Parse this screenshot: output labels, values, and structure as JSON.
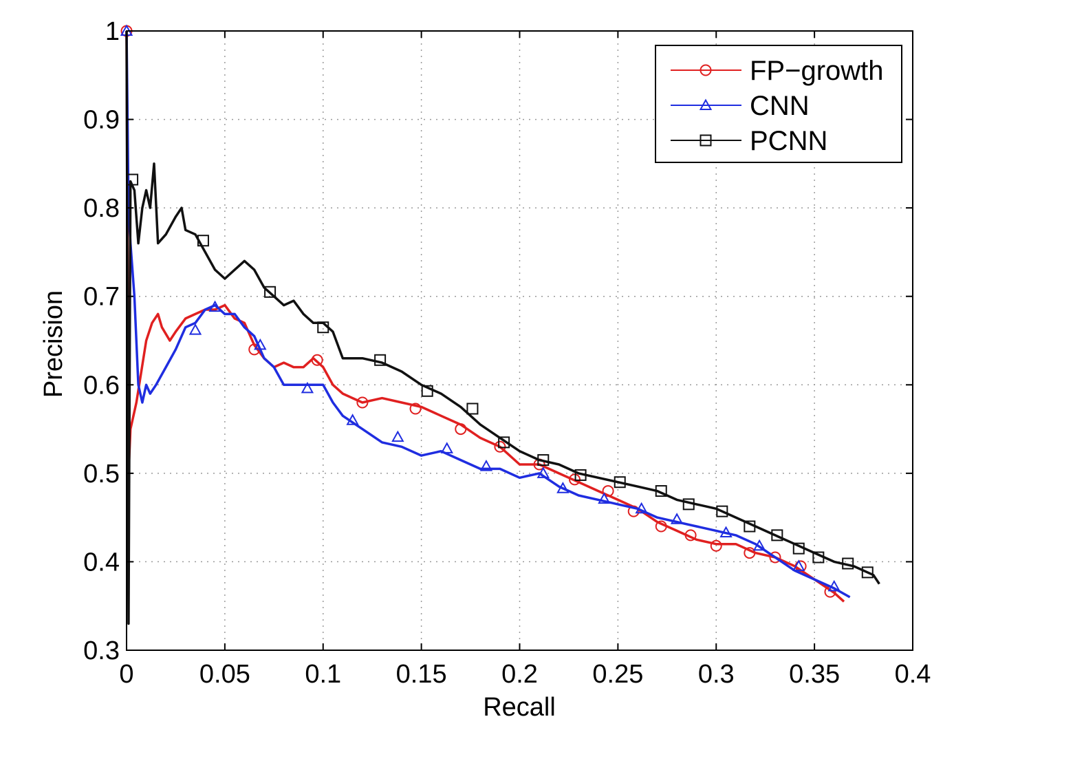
{
  "chart_data": {
    "type": "line",
    "xlabel": "Recall",
    "ylabel": "Precision",
    "xlim": [
      0,
      0.4
    ],
    "ylim": [
      0.3,
      1
    ],
    "grid": true,
    "legend_position": "top-right",
    "x_ticks": [
      "0",
      "0.05",
      "0.1",
      "0.15",
      "0.2",
      "0.25",
      "0.3",
      "0.35",
      "0.4"
    ],
    "y_ticks": [
      "0.3",
      "0.4",
      "0.5",
      "0.6",
      "0.7",
      "0.8",
      "0.9",
      "1"
    ],
    "series": [
      {
        "name": "FP−growth",
        "color": "#e02020",
        "marker": "circle",
        "x": [
          0,
          0.001,
          0.002,
          0.005,
          0.01,
          0.013,
          0.016,
          0.018,
          0.022,
          0.025,
          0.03,
          0.035,
          0.04,
          0.045,
          0.05,
          0.055,
          0.06,
          0.065,
          0.07,
          0.075,
          0.08,
          0.085,
          0.09,
          0.095,
          0.1,
          0.105,
          0.11,
          0.115,
          0.12,
          0.13,
          0.14,
          0.15,
          0.16,
          0.17,
          0.18,
          0.19,
          0.2,
          0.21,
          0.22,
          0.23,
          0.24,
          0.25,
          0.26,
          0.27,
          0.28,
          0.29,
          0.3,
          0.31,
          0.32,
          0.33,
          0.34,
          0.35,
          0.36,
          0.365
        ],
        "y": [
          1,
          0.5,
          0.55,
          0.58,
          0.65,
          0.67,
          0.68,
          0.665,
          0.65,
          0.66,
          0.675,
          0.68,
          0.685,
          0.685,
          0.69,
          0.675,
          0.67,
          0.645,
          0.63,
          0.62,
          0.625,
          0.62,
          0.62,
          0.63,
          0.62,
          0.6,
          0.59,
          0.585,
          0.58,
          0.585,
          0.58,
          0.575,
          0.565,
          0.555,
          0.54,
          0.53,
          0.51,
          0.51,
          0.5,
          0.49,
          0.48,
          0.47,
          0.46,
          0.445,
          0.435,
          0.425,
          0.42,
          0.42,
          0.41,
          0.405,
          0.395,
          0.38,
          0.365,
          0.355
        ],
        "marker_x": [
          0,
          0.065,
          0.097,
          0.12,
          0.147,
          0.17,
          0.19,
          0.21,
          0.228,
          0.245,
          0.258,
          0.272,
          0.287,
          0.3,
          0.317,
          0.33,
          0.343,
          0.358
        ],
        "marker_y": [
          1,
          0.64,
          0.628,
          0.58,
          0.573,
          0.55,
          0.53,
          0.51,
          0.493,
          0.48,
          0.457,
          0.44,
          0.43,
          0.418,
          0.41,
          0.405,
          0.395,
          0.366
        ]
      },
      {
        "name": "CNN",
        "color": "#1f2de0",
        "marker": "triangle",
        "x": [
          0,
          0.001,
          0.002,
          0.004,
          0.006,
          0.008,
          0.01,
          0.012,
          0.015,
          0.02,
          0.025,
          0.03,
          0.035,
          0.04,
          0.045,
          0.05,
          0.055,
          0.06,
          0.065,
          0.07,
          0.075,
          0.08,
          0.085,
          0.09,
          0.095,
          0.1,
          0.105,
          0.11,
          0.12,
          0.13,
          0.14,
          0.15,
          0.16,
          0.17,
          0.18,
          0.19,
          0.2,
          0.21,
          0.22,
          0.23,
          0.24,
          0.25,
          0.26,
          0.27,
          0.28,
          0.29,
          0.3,
          0.31,
          0.32,
          0.33,
          0.34,
          0.35,
          0.36,
          0.368
        ],
        "y": [
          1,
          0.8,
          0.76,
          0.7,
          0.6,
          0.58,
          0.6,
          0.59,
          0.6,
          0.62,
          0.64,
          0.665,
          0.67,
          0.685,
          0.69,
          0.68,
          0.68,
          0.665,
          0.655,
          0.63,
          0.62,
          0.6,
          0.6,
          0.6,
          0.6,
          0.6,
          0.58,
          0.565,
          0.55,
          0.535,
          0.53,
          0.52,
          0.525,
          0.515,
          0.505,
          0.505,
          0.495,
          0.5,
          0.485,
          0.475,
          0.47,
          0.465,
          0.46,
          0.45,
          0.445,
          0.44,
          0.435,
          0.43,
          0.42,
          0.405,
          0.39,
          0.38,
          0.37,
          0.36
        ],
        "marker_x": [
          0,
          0.035,
          0.045,
          0.068,
          0.092,
          0.115,
          0.138,
          0.163,
          0.183,
          0.212,
          0.222,
          0.243,
          0.262,
          0.28,
          0.305,
          0.322,
          0.342,
          0.36
        ],
        "marker_y": [
          1,
          0.662,
          0.688,
          0.645,
          0.596,
          0.56,
          0.541,
          0.528,
          0.508,
          0.5,
          0.483,
          0.471,
          0.46,
          0.448,
          0.433,
          0.418,
          0.395,
          0.372
        ]
      },
      {
        "name": "PCNN",
        "color": "#111111",
        "marker": "square",
        "x": [
          0,
          0.001,
          0.002,
          0.004,
          0.006,
          0.008,
          0.01,
          0.012,
          0.014,
          0.016,
          0.02,
          0.025,
          0.028,
          0.03,
          0.035,
          0.04,
          0.045,
          0.05,
          0.055,
          0.06,
          0.065,
          0.07,
          0.075,
          0.08,
          0.085,
          0.09,
          0.095,
          0.1,
          0.105,
          0.11,
          0.12,
          0.13,
          0.14,
          0.15,
          0.16,
          0.17,
          0.18,
          0.19,
          0.2,
          0.21,
          0.22,
          0.23,
          0.24,
          0.25,
          0.26,
          0.27,
          0.28,
          0.29,
          0.3,
          0.31,
          0.32,
          0.33,
          0.34,
          0.35,
          0.36,
          0.37,
          0.38,
          0.383
        ],
        "y": [
          1,
          0.33,
          0.83,
          0.82,
          0.76,
          0.8,
          0.82,
          0.8,
          0.85,
          0.76,
          0.77,
          0.79,
          0.8,
          0.775,
          0.77,
          0.75,
          0.73,
          0.72,
          0.73,
          0.74,
          0.73,
          0.71,
          0.7,
          0.69,
          0.695,
          0.68,
          0.67,
          0.67,
          0.66,
          0.63,
          0.63,
          0.625,
          0.615,
          0.6,
          0.59,
          0.575,
          0.555,
          0.54,
          0.525,
          0.515,
          0.51,
          0.5,
          0.495,
          0.49,
          0.485,
          0.48,
          0.47,
          0.465,
          0.46,
          0.45,
          0.44,
          0.43,
          0.42,
          0.41,
          0.4,
          0.395,
          0.385,
          0.375
        ],
        "marker_x": [
          0.003,
          0.039,
          0.073,
          0.1,
          0.129,
          0.153,
          0.176,
          0.192,
          0.212,
          0.231,
          0.251,
          0.272,
          0.286,
          0.303,
          0.317,
          0.331,
          0.342,
          0.352,
          0.367,
          0.377
        ],
        "marker_y": [
          0.832,
          0.763,
          0.705,
          0.665,
          0.628,
          0.593,
          0.573,
          0.535,
          0.515,
          0.498,
          0.49,
          0.48,
          0.465,
          0.457,
          0.44,
          0.43,
          0.415,
          0.405,
          0.398,
          0.388
        ]
      }
    ]
  }
}
